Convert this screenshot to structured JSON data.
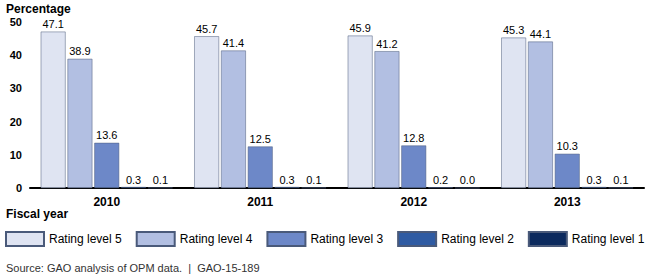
{
  "chart_data": {
    "type": "bar",
    "y_label": "Percentage",
    "x_label": "Fiscal year",
    "source": "Source: GAO analysis of OPM data.  |  GAO-15-189",
    "categories": [
      "2010",
      "2011",
      "2012",
      "2013"
    ],
    "series": [
      {
        "name": "Rating level 5",
        "color": "#dfe4f2",
        "values": [
          47.1,
          45.7,
          45.9,
          45.3
        ]
      },
      {
        "name": "Rating level 4",
        "color": "#b2bfe2",
        "values": [
          38.9,
          41.4,
          41.2,
          44.1
        ]
      },
      {
        "name": "Rating level 3",
        "color": "#6d88c8",
        "values": [
          13.6,
          12.5,
          12.8,
          10.3
        ]
      },
      {
        "name": "Rating level 2",
        "color": "#2f5ba3",
        "values": [
          0.3,
          0.3,
          0.2,
          0.3
        ]
      },
      {
        "name": "Rating level 1",
        "color": "#0c2a5e",
        "values": [
          0.1,
          0.1,
          0.0,
          0.1
        ],
        "value_labels": [
          "0.1",
          "0.1",
          "0.0",
          "0.1"
        ]
      }
    ],
    "ylim": [
      0,
      50
    ],
    "yticks": [
      0,
      10,
      20,
      30,
      40,
      50
    ],
    "grid": false,
    "data_labels": true,
    "legend": "bottom"
  }
}
